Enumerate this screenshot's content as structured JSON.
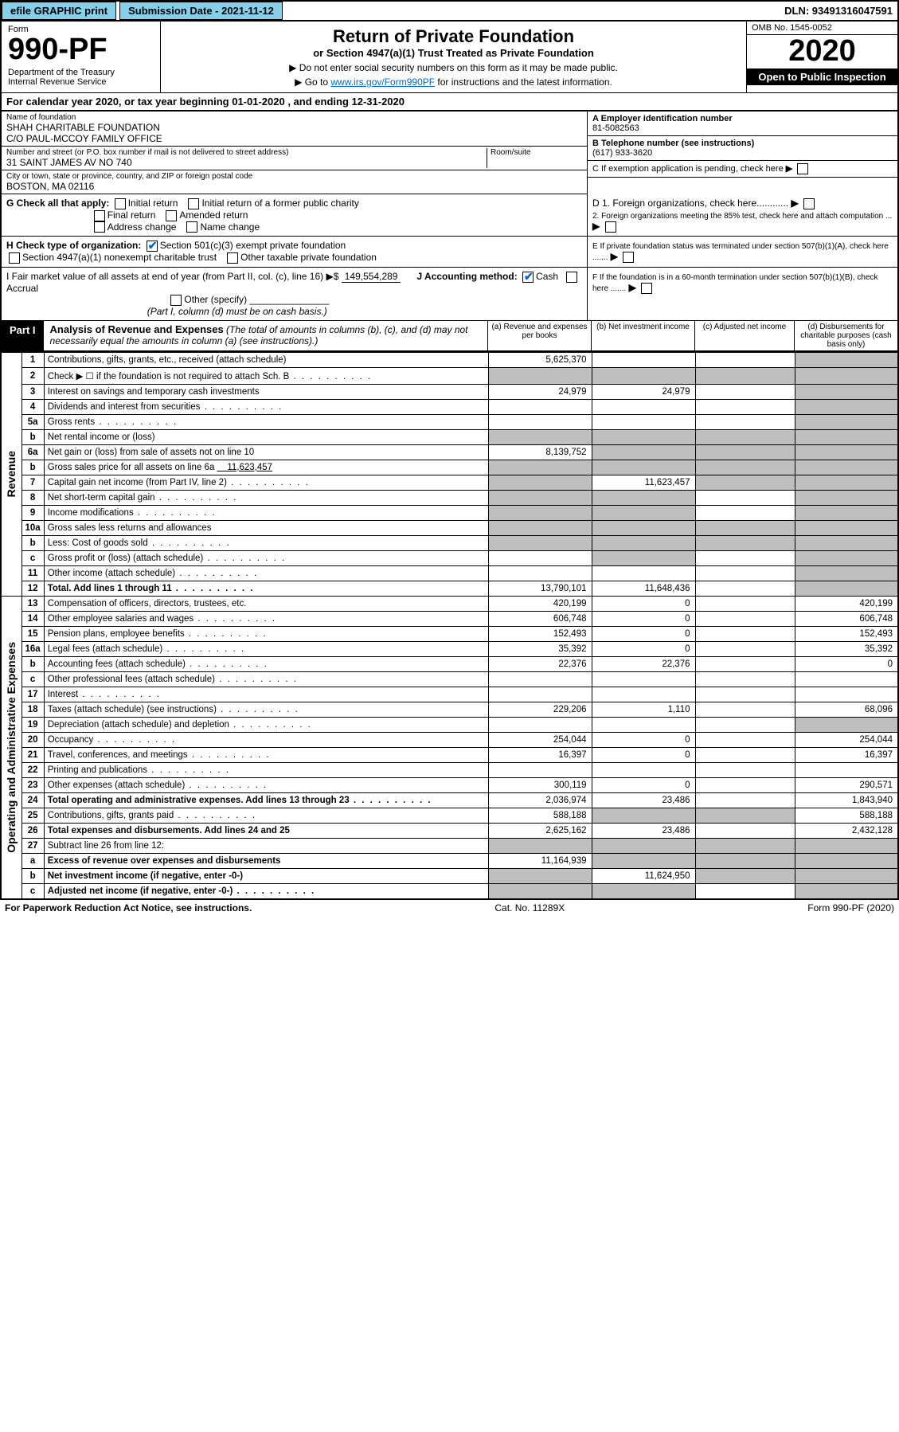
{
  "topbar": {
    "efile": "efile GRAPHIC print",
    "submission": "Submission Date - 2021-11-12",
    "dln": "DLN: 93491316047591"
  },
  "header": {
    "form_label": "Form",
    "form_num": "990-PF",
    "dept": "Department of the Treasury\nInternal Revenue Service",
    "title": "Return of Private Foundation",
    "subtitle": "or Section 4947(a)(1) Trust Treated as Private Foundation",
    "note1": "▶ Do not enter social security numbers on this form as it may be made public.",
    "note2_pre": "▶ Go to ",
    "note2_link": "www.irs.gov/Form990PF",
    "note2_post": " for instructions and the latest information.",
    "omb": "OMB No. 1545-0052",
    "year": "2020",
    "open_pub": "Open to Public Inspection"
  },
  "cal_year": "For calendar year 2020, or tax year beginning 01-01-2020                              , and ending 12-31-2020",
  "id": {
    "name_label": "Name of foundation",
    "name": "SHAH CHARITABLE FOUNDATION\nC/O PAUL-MCCOY FAMILY OFFICE",
    "addr_label": "Number and street (or P.O. box number if mail is not delivered to street address)",
    "addr": "31 SAINT JAMES AV NO 740",
    "room_label": "Room/suite",
    "city_label": "City or town, state or province, country, and ZIP or foreign postal code",
    "city": "BOSTON, MA  02116",
    "ein_label": "A Employer identification number",
    "ein": "81-5082563",
    "tel_label": "B Telephone number (see instructions)",
    "tel": "(617) 933-3620",
    "c_label": "C If exemption application is pending, check here",
    "d1": "D 1. Foreign organizations, check here............",
    "d2": "2. Foreign organizations meeting the 85% test, check here and attach computation ...",
    "e": "E  If private foundation status was terminated under section 507(b)(1)(A), check here .......",
    "f": "F  If the foundation is in a 60-month termination under section 507(b)(1)(B), check here .......",
    "g": "G Check all that apply:",
    "g_opts": [
      "Initial return",
      "Initial return of a former public charity",
      "Final return",
      "Amended return",
      "Address change",
      "Name change"
    ],
    "h": "H Check type of organization:",
    "h_opts": [
      "Section 501(c)(3) exempt private foundation",
      "Section 4947(a)(1) nonexempt charitable trust",
      "Other taxable private foundation"
    ],
    "i": "I Fair market value of all assets at end of year (from Part II, col. (c), line 16) ▶$",
    "i_val": "149,554,289",
    "j": "J Accounting method:",
    "j_opts": [
      "Cash",
      "Accrual",
      "Other (specify)"
    ],
    "j_note": "(Part I, column (d) must be on cash basis.)"
  },
  "part1": {
    "label": "Part I",
    "title": "Analysis of Revenue and Expenses",
    "subtitle": " (The total of amounts in columns (b), (c), and (d) may not necessarily equal the amounts in column (a) (see instructions).)",
    "cols": {
      "a": "(a) Revenue and expenses per books",
      "b": "(b) Net investment income",
      "c": "(c) Adjusted net income",
      "d": "(d) Disbursements for charitable purposes (cash basis only)"
    }
  },
  "side": {
    "revenue": "Revenue",
    "expenses": "Operating and Administrative Expenses"
  },
  "rows": [
    {
      "n": "1",
      "desc": "Contributions, gifts, grants, etc., received (attach schedule)",
      "a": "5,625,370",
      "b": "",
      "c": "",
      "d": "",
      "d_grey": true
    },
    {
      "n": "2",
      "desc": "Check ▶ ☐ if the foundation is not required to attach Sch. B",
      "dots": true,
      "a": "",
      "b": "",
      "c": "",
      "d": "",
      "a_grey": true,
      "b_grey": true,
      "c_grey": true,
      "d_grey": true
    },
    {
      "n": "3",
      "desc": "Interest on savings and temporary cash investments",
      "a": "24,979",
      "b": "24,979",
      "c": "",
      "d": "",
      "d_grey": true
    },
    {
      "n": "4",
      "desc": "Dividends and interest from securities",
      "dots": true,
      "a": "",
      "b": "",
      "c": "",
      "d": "",
      "d_grey": true
    },
    {
      "n": "5a",
      "desc": "Gross rents",
      "dots": true,
      "a": "",
      "b": "",
      "c": "",
      "d": "",
      "d_grey": true
    },
    {
      "n": "b",
      "desc": "Net rental income or (loss)",
      "a": "",
      "b": "",
      "c": "",
      "d": "",
      "a_grey": true,
      "b_grey": true,
      "c_grey": true,
      "d_grey": true
    },
    {
      "n": "6a",
      "desc": "Net gain or (loss) from sale of assets not on line 10",
      "a": "8,139,752",
      "b": "",
      "c": "",
      "d": "",
      "b_grey": true,
      "c_grey": true,
      "d_grey": true
    },
    {
      "n": "b",
      "desc": "Gross sales price for all assets on line 6a",
      "inline": "11,623,457",
      "a": "",
      "b": "",
      "c": "",
      "d": "",
      "a_grey": true,
      "b_grey": true,
      "c_grey": true,
      "d_grey": true
    },
    {
      "n": "7",
      "desc": "Capital gain net income (from Part IV, line 2)",
      "dots": true,
      "a": "",
      "b": "11,623,457",
      "c": "",
      "d": "",
      "a_grey": true,
      "c_grey": true,
      "d_grey": true
    },
    {
      "n": "8",
      "desc": "Net short-term capital gain",
      "dots": true,
      "a": "",
      "b": "",
      "c": "",
      "d": "",
      "a_grey": true,
      "b_grey": true,
      "d_grey": true
    },
    {
      "n": "9",
      "desc": "Income modifications",
      "dots": true,
      "a": "",
      "b": "",
      "c": "",
      "d": "",
      "a_grey": true,
      "b_grey": true,
      "d_grey": true
    },
    {
      "n": "10a",
      "desc": "Gross sales less returns and allowances",
      "a": "",
      "b": "",
      "c": "",
      "d": "",
      "a_grey": true,
      "b_grey": true,
      "c_grey": true,
      "d_grey": true
    },
    {
      "n": "b",
      "desc": "Less: Cost of goods sold",
      "dots": true,
      "a": "",
      "b": "",
      "c": "",
      "d": "",
      "a_grey": true,
      "b_grey": true,
      "c_grey": true,
      "d_grey": true
    },
    {
      "n": "c",
      "desc": "Gross profit or (loss) (attach schedule)",
      "dots": true,
      "a": "",
      "b": "",
      "c": "",
      "d": "",
      "b_grey": true,
      "d_grey": true
    },
    {
      "n": "11",
      "desc": "Other income (attach schedule)",
      "dots": true,
      "a": "",
      "b": "",
      "c": "",
      "d": "",
      "d_grey": true
    },
    {
      "n": "12",
      "desc": "Total. Add lines 1 through 11",
      "dots": true,
      "bold": true,
      "a": "13,790,101",
      "b": "11,648,436",
      "c": "",
      "d": "",
      "d_grey": true
    },
    {
      "n": "13",
      "desc": "Compensation of officers, directors, trustees, etc.",
      "a": "420,199",
      "b": "0",
      "c": "",
      "d": "420,199"
    },
    {
      "n": "14",
      "desc": "Other employee salaries and wages",
      "dots": true,
      "a": "606,748",
      "b": "0",
      "c": "",
      "d": "606,748"
    },
    {
      "n": "15",
      "desc": "Pension plans, employee benefits",
      "dots": true,
      "a": "152,493",
      "b": "0",
      "c": "",
      "d": "152,493"
    },
    {
      "n": "16a",
      "desc": "Legal fees (attach schedule)",
      "dots": true,
      "a": "35,392",
      "b": "0",
      "c": "",
      "d": "35,392"
    },
    {
      "n": "b",
      "desc": "Accounting fees (attach schedule)",
      "dots": true,
      "a": "22,376",
      "b": "22,376",
      "c": "",
      "d": "0"
    },
    {
      "n": "c",
      "desc": "Other professional fees (attach schedule)",
      "dots": true,
      "a": "",
      "b": "",
      "c": "",
      "d": ""
    },
    {
      "n": "17",
      "desc": "Interest",
      "dots": true,
      "a": "",
      "b": "",
      "c": "",
      "d": ""
    },
    {
      "n": "18",
      "desc": "Taxes (attach schedule) (see instructions)",
      "dots": true,
      "a": "229,206",
      "b": "1,110",
      "c": "",
      "d": "68,096"
    },
    {
      "n": "19",
      "desc": "Depreciation (attach schedule) and depletion",
      "dots": true,
      "a": "",
      "b": "",
      "c": "",
      "d": "",
      "d_grey": true
    },
    {
      "n": "20",
      "desc": "Occupancy",
      "dots": true,
      "a": "254,044",
      "b": "0",
      "c": "",
      "d": "254,044"
    },
    {
      "n": "21",
      "desc": "Travel, conferences, and meetings",
      "dots": true,
      "a": "16,397",
      "b": "0",
      "c": "",
      "d": "16,397"
    },
    {
      "n": "22",
      "desc": "Printing and publications",
      "dots": true,
      "a": "",
      "b": "",
      "c": "",
      "d": ""
    },
    {
      "n": "23",
      "desc": "Other expenses (attach schedule)",
      "dots": true,
      "a": "300,119",
      "b": "0",
      "c": "",
      "d": "290,571"
    },
    {
      "n": "24",
      "desc": "Total operating and administrative expenses. Add lines 13 through 23",
      "dots": true,
      "bold": true,
      "a": "2,036,974",
      "b": "23,486",
      "c": "",
      "d": "1,843,940"
    },
    {
      "n": "25",
      "desc": "Contributions, gifts, grants paid",
      "dots": true,
      "a": "588,188",
      "b": "",
      "c": "",
      "d": "588,188",
      "b_grey": true,
      "c_grey": true
    },
    {
      "n": "26",
      "desc": "Total expenses and disbursements. Add lines 24 and 25",
      "bold": true,
      "a": "2,625,162",
      "b": "23,486",
      "c": "",
      "d": "2,432,128"
    },
    {
      "n": "27",
      "desc": "Subtract line 26 from line 12:",
      "a": "",
      "b": "",
      "c": "",
      "d": "",
      "a_grey": true,
      "b_grey": true,
      "c_grey": true,
      "d_grey": true
    },
    {
      "n": "a",
      "desc": "Excess of revenue over expenses and disbursements",
      "bold": true,
      "a": "11,164,939",
      "b": "",
      "c": "",
      "d": "",
      "b_grey": true,
      "c_grey": true,
      "d_grey": true
    },
    {
      "n": "b",
      "desc": "Net investment income (if negative, enter -0-)",
      "bold": true,
      "a": "",
      "b": "11,624,950",
      "c": "",
      "d": "",
      "a_grey": true,
      "c_grey": true,
      "d_grey": true
    },
    {
      "n": "c",
      "desc": "Adjusted net income (if negative, enter -0-)",
      "dots": true,
      "bold": true,
      "a": "",
      "b": "",
      "c": "",
      "d": "",
      "a_grey": true,
      "b_grey": true,
      "d_grey": true
    }
  ],
  "footer": {
    "left": "For Paperwork Reduction Act Notice, see instructions.",
    "center": "Cat. No. 11289X",
    "right": "Form 990-PF (2020)"
  }
}
